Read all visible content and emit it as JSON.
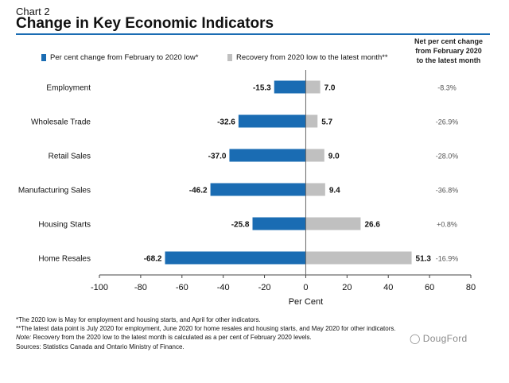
{
  "header": {
    "chart_label": "Chart 2",
    "title": "Change in Key Economic Indicators",
    "net_column_heading_lines": [
      "Net per cent change",
      "from February 2020",
      "to the latest month"
    ]
  },
  "legend": {
    "decline_label": "Per cent change from February to 2020 low*",
    "recovery_label": "Recovery from 2020 low to the latest month**"
  },
  "chart_data": {
    "type": "bar",
    "orientation": "horizontal",
    "categories": [
      "Employment",
      "Wholesale Trade",
      "Retail Sales",
      "Manufacturing Sales",
      "Housing Starts",
      "Home Resales"
    ],
    "series": [
      {
        "name": "Per cent change from February to 2020 low*",
        "color": "#1a6cb3",
        "values": [
          -15.3,
          -32.6,
          -37.0,
          -46.2,
          -25.8,
          -68.2
        ]
      },
      {
        "name": "Recovery from 2020 low to the latest month**",
        "color": "#c0c0c0",
        "values": [
          7.0,
          5.7,
          9.0,
          9.4,
          26.6,
          51.3
        ]
      }
    ],
    "data_labels": {
      "decline": [
        "-15.3",
        "-32.6",
        "-37.0",
        "-46.2",
        "-25.8",
        "-68.2"
      ],
      "recovery": [
        "7.0",
        "5.7",
        "9.0",
        "9.4",
        "26.6",
        "51.3"
      ]
    },
    "net_change_labels": [
      "-8.3%",
      "-26.9%",
      "-28.0%",
      "-36.8%",
      "+0.8%",
      "-16.9%"
    ],
    "xlim": [
      -100,
      80
    ],
    "xticks": [
      -100,
      -80,
      -60,
      -40,
      -20,
      0,
      20,
      40,
      60,
      80
    ],
    "xlabel": "Per Cent",
    "grid": false,
    "legend_position": "top"
  },
  "footnotes": {
    "line1": "*The 2020 low is May for employment and housing starts, and April for other indicators.",
    "line2": "**The latest data point is July 2020 for employment, June 2020 for home resales and housing starts, and May 2020 for other indicators.",
    "note_label": "Note:",
    "note_text": " Recovery from the 2020 low to the latest month is calculated as a per cent of February 2020 levels.",
    "sources": "Sources: Statistics Canada and Ontario Ministry of Finance."
  },
  "watermark": {
    "text": "DougFord",
    "icon": "wechat-icon"
  }
}
